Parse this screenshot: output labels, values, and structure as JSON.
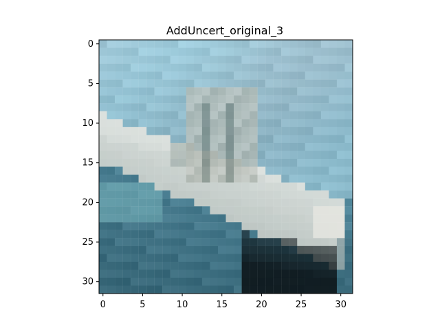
{
  "figure": {
    "title": "AddUncert_original_3"
  },
  "image_plot": {
    "type": "heatmap",
    "grid_size": [
      32,
      32
    ],
    "x_ticks": [
      "0",
      "5",
      "10",
      "15",
      "20",
      "25",
      "30"
    ],
    "y_ticks": [
      "0",
      "5",
      "10",
      "15",
      "20",
      "25",
      "30"
    ],
    "palette": {
      "sky": "#9fc2d1",
      "bright_sky": "#9fd2e3",
      "sea": "#4f8599",
      "deep_sea": "#2f5c6c",
      "ship_white": "#e7e7e1",
      "ship_gray": "#8e9a93",
      "shadow": "#0c1418"
    },
    "ticks": [
      0,
      5,
      10,
      15,
      20,
      25,
      30
    ]
  }
}
